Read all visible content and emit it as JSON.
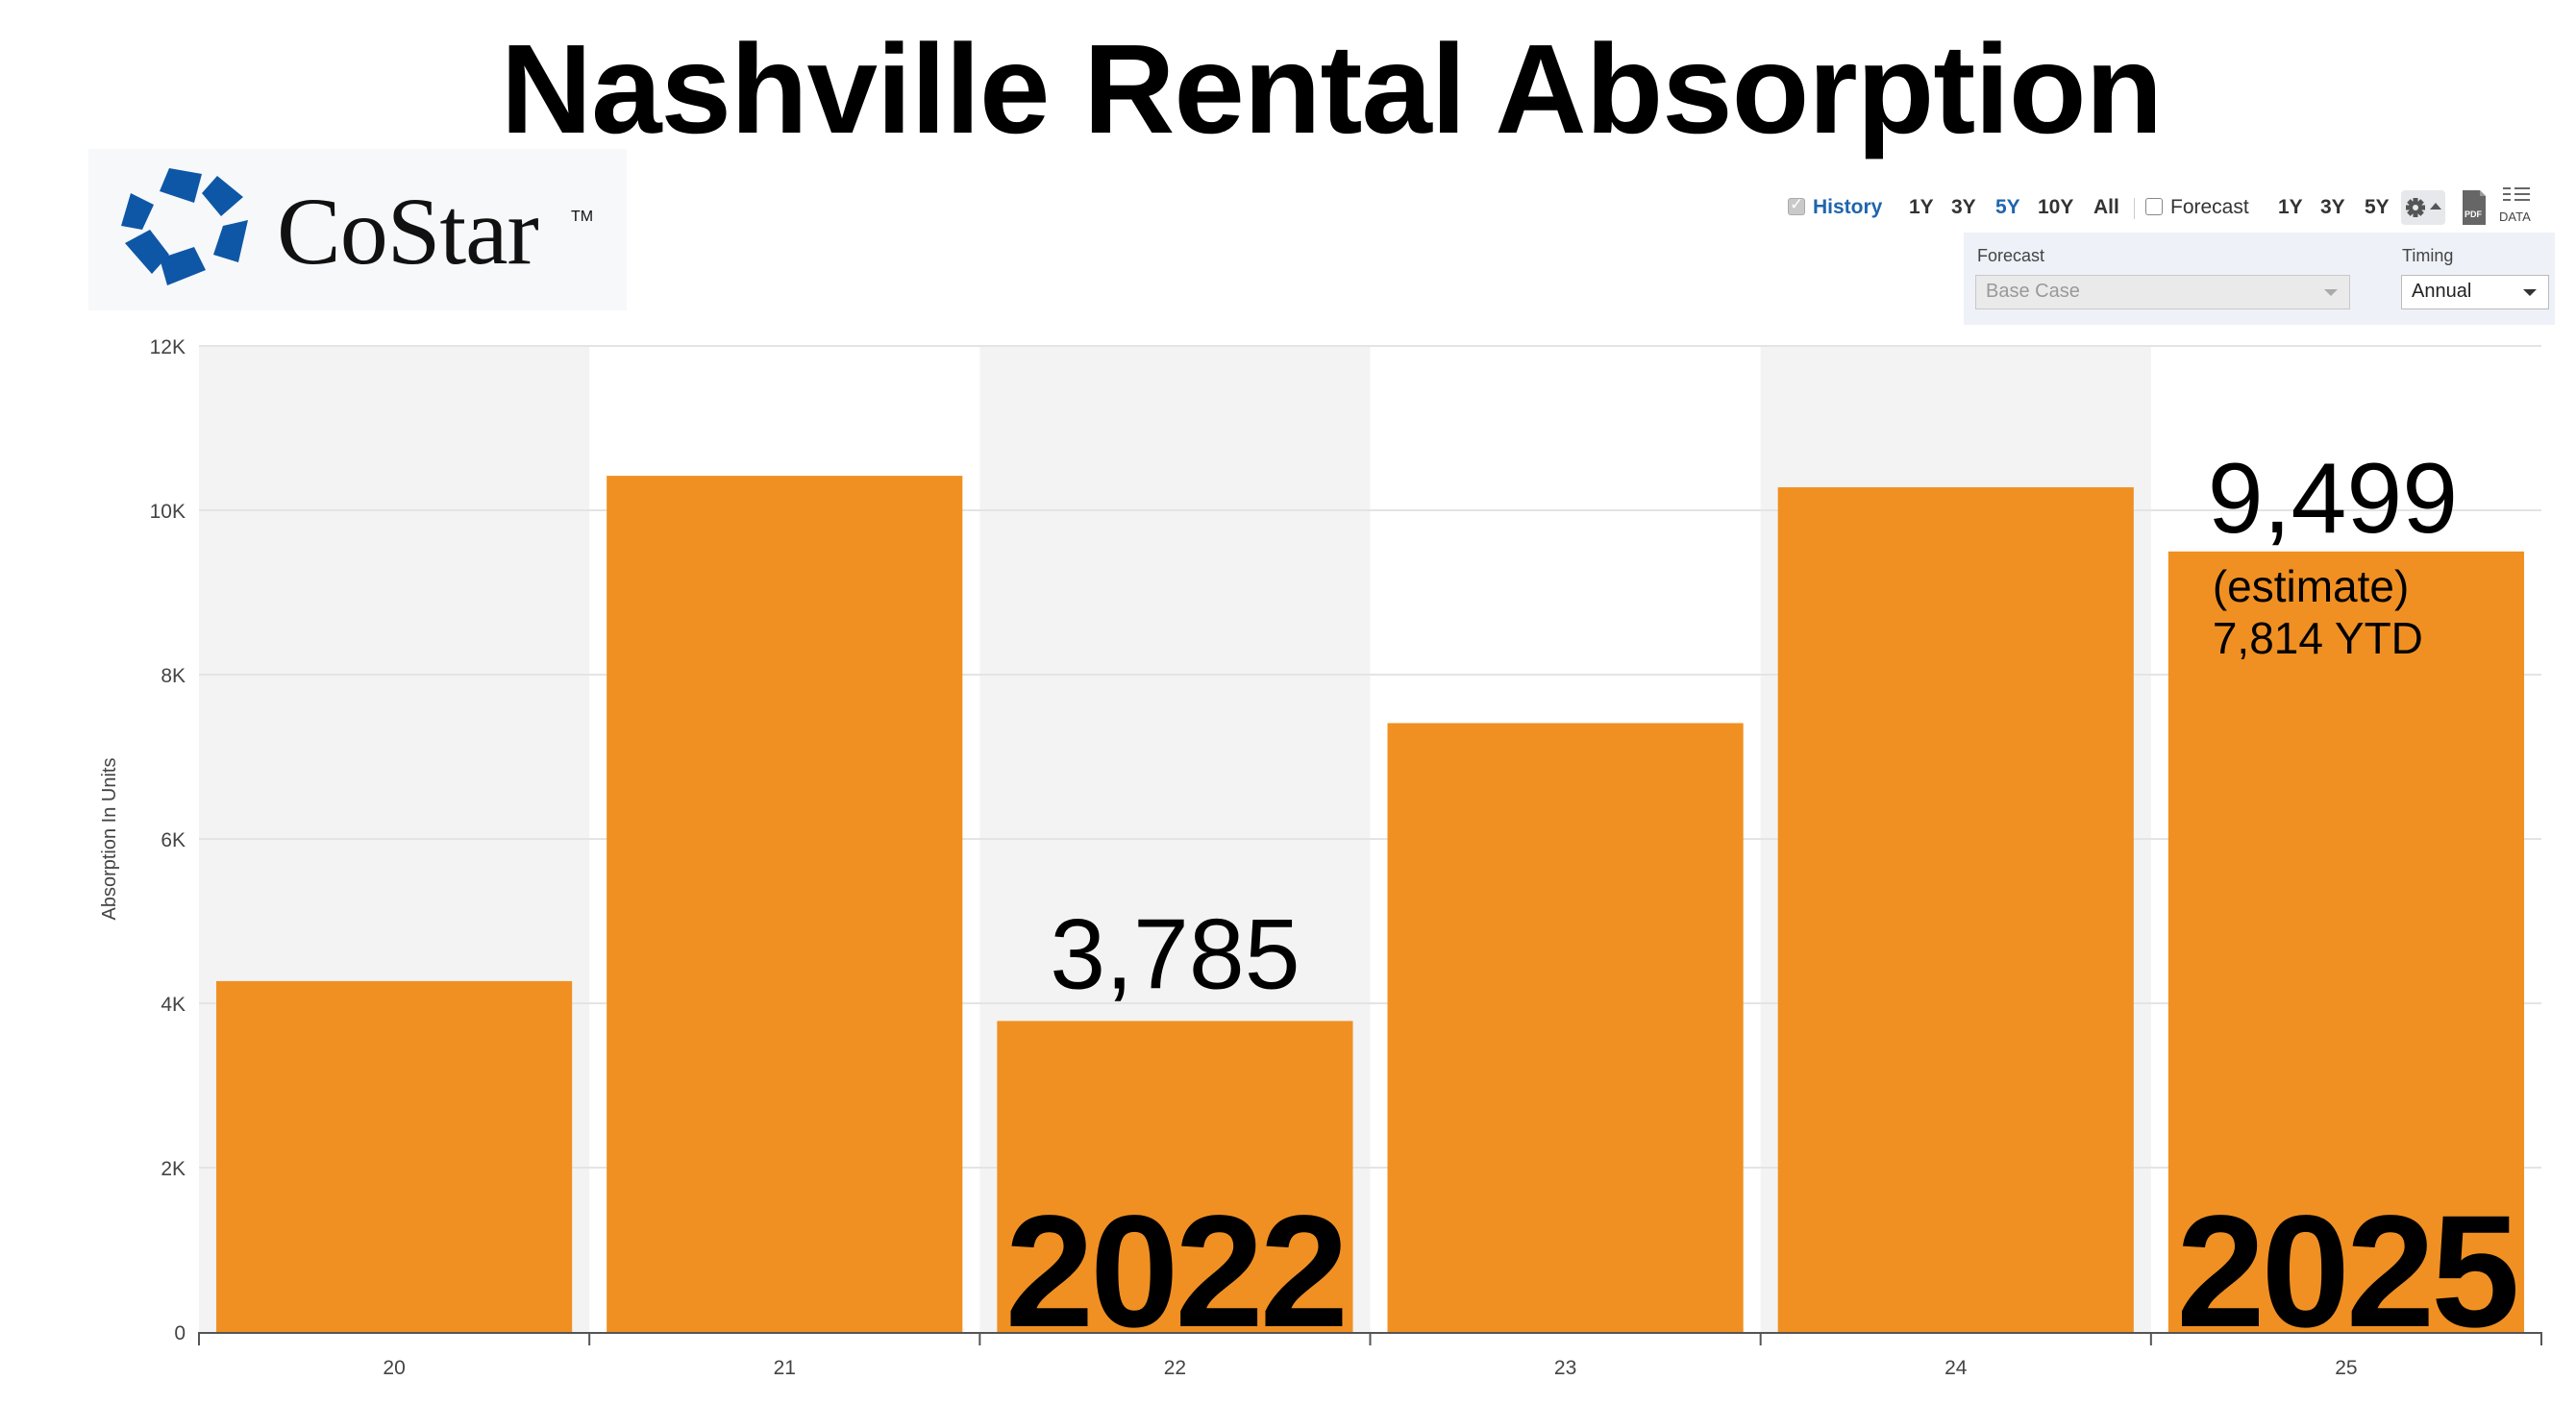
{
  "header": {
    "title": "Nashville Rental Absorption"
  },
  "logo": {
    "text": "CoStar",
    "tm": "TM",
    "color": "#0d57a6"
  },
  "toolbar": {
    "history_label": "History",
    "history_checked": true,
    "history_periods": [
      "1Y",
      "3Y",
      "5Y",
      "10Y",
      "All"
    ],
    "history_active": "5Y",
    "forecast_label": "Forecast",
    "forecast_checked": false,
    "forecast_periods": [
      "1Y",
      "3Y",
      "5Y"
    ],
    "settings_icon": "gear-icon",
    "pdf_icon": "pdf-icon",
    "pdf_label": "PDF",
    "data_icon": "data-icon",
    "data_label": "DATA"
  },
  "filters": {
    "forecast_label": "Forecast",
    "forecast_value": "Base Case",
    "timing_label": "Timing",
    "timing_value": "Annual"
  },
  "colors": {
    "bar": "#f09022",
    "band": "#f3f3f3",
    "grid": "#e4e4e4",
    "accent": "#1f64ad"
  },
  "chart_data": {
    "type": "bar",
    "categories": [
      "20",
      "21",
      "22",
      "23",
      "24",
      "25"
    ],
    "values": [
      4270,
      10420,
      3785,
      7410,
      10280,
      9499
    ],
    "title": "Nashville Rental Absorption",
    "xlabel": "",
    "ylabel": "Absorption In Units",
    "ylim": [
      0,
      12000
    ],
    "yticks": [
      "0",
      "2K",
      "4K",
      "6K",
      "8K",
      "10K",
      "12K"
    ],
    "grid": true,
    "alternating_bands": true,
    "annotations": {
      "value_22": "3,785",
      "year_22": "2022",
      "value_25": "9,499",
      "note_25": "(estimate)",
      "ytd_25": "7,814 YTD",
      "year_25": "2025"
    }
  }
}
